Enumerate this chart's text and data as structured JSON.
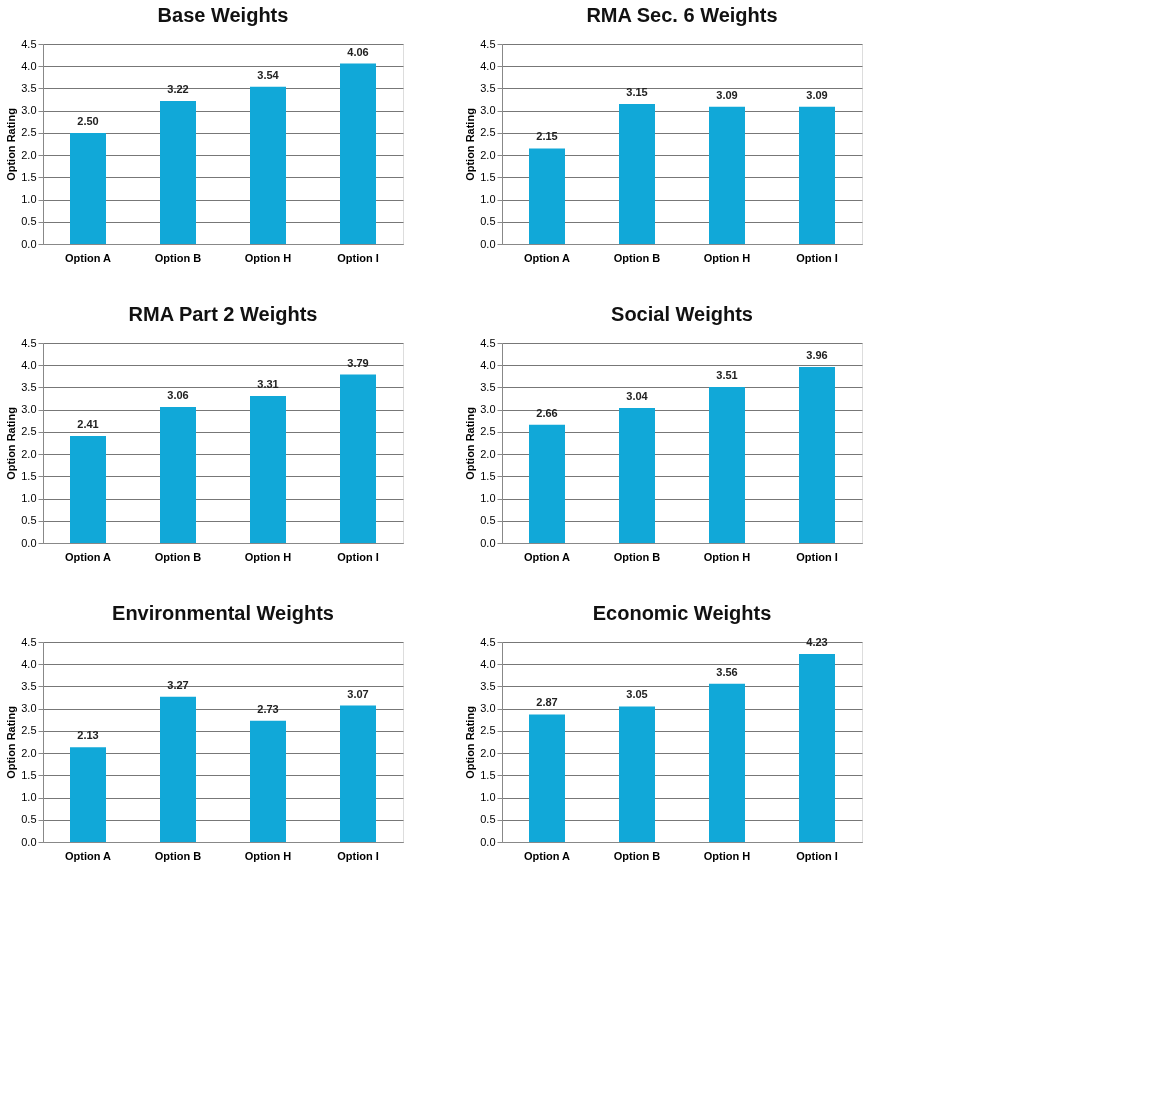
{
  "chart_data": [
    {
      "type": "bar",
      "title": "Base Weights",
      "ylabel": "Option Rating",
      "categories": [
        "Option A",
        "Option B",
        "Option H",
        "Option I"
      ],
      "values": [
        2.5,
        3.22,
        3.54,
        4.06
      ],
      "value_labels": [
        "2.50",
        "3.22",
        "3.54",
        "4.06"
      ],
      "color": "#11a8d8",
      "ylim": [
        0,
        4.5
      ],
      "yticks": [
        {
          "value": 0,
          "label": "0.0"
        },
        0.5,
        {
          "value": 1,
          "label": "1.0"
        },
        1.5,
        {
          "value": 2,
          "label": "2.0"
        },
        2.5,
        {
          "value": 3,
          "label": "3.0"
        },
        3.5,
        {
          "value": 4,
          "label": "4.0"
        },
        4.5
      ],
      "grid": "y"
    },
    {
      "type": "bar",
      "title": "RMA Sec. 6 Weights",
      "ylabel": "Option Rating",
      "categories": [
        "Option A",
        "Option B",
        "Option H",
        "Option I"
      ],
      "values": [
        2.15,
        3.15,
        3.09,
        3.09
      ],
      "value_labels": [
        "2.15",
        "3.15",
        "3.09",
        "3.09"
      ],
      "color": "#11a8d8",
      "ylim": [
        0,
        4.5
      ],
      "yticks": [
        {
          "value": 0,
          "label": "0.0"
        },
        0.5,
        {
          "value": 1,
          "label": "1.0"
        },
        1.5,
        {
          "value": 2,
          "label": "2.0"
        },
        2.5,
        {
          "value": 3,
          "label": "3.0"
        },
        3.5,
        {
          "value": 4,
          "label": "4.0"
        },
        4.5
      ],
      "grid": "y"
    },
    {
      "type": "bar",
      "title": "RMA Part 2 Weights",
      "ylabel": "Option Rating",
      "categories": [
        "Option A",
        "Option B",
        "Option H",
        "Option I"
      ],
      "values": [
        2.41,
        3.06,
        3.31,
        3.79
      ],
      "value_labels": [
        "2.41",
        "3.06",
        "3.31",
        "3.79"
      ],
      "color": "#11a8d8",
      "ylim": [
        0,
        4.5
      ],
      "yticks": [
        {
          "value": 0,
          "label": "0.0"
        },
        0.5,
        {
          "value": 1,
          "label": "1.0"
        },
        1.5,
        {
          "value": 2,
          "label": "2.0"
        },
        2.5,
        {
          "value": 3,
          "label": "3.0"
        },
        3.5,
        {
          "value": 4,
          "label": "4.0"
        },
        4.5
      ],
      "grid": "y"
    },
    {
      "type": "bar",
      "title": "Social Weights",
      "ylabel": "Option Rating",
      "categories": [
        "Option A",
        "Option B",
        "Option H",
        "Option I"
      ],
      "values": [
        2.66,
        3.04,
        3.51,
        3.96
      ],
      "value_labels": [
        "2.66",
        "3.04",
        "3.51",
        "3.96"
      ],
      "color": "#11a8d8",
      "ylim": [
        0,
        4.5
      ],
      "yticks": [
        {
          "value": 0,
          "label": "0.0"
        },
        0.5,
        {
          "value": 1,
          "label": "1.0"
        },
        1.5,
        {
          "value": 2,
          "label": "2.0"
        },
        2.5,
        {
          "value": 3,
          "label": "3.0"
        },
        3.5,
        {
          "value": 4,
          "label": "4.0"
        },
        4.5
      ],
      "grid": "y"
    },
    {
      "type": "bar",
      "title": "Environmental Weights",
      "ylabel": "Option Rating",
      "categories": [
        "Option A",
        "Option B",
        "Option H",
        "Option I"
      ],
      "values": [
        2.13,
        3.27,
        2.73,
        3.07
      ],
      "value_labels": [
        "2.13",
        "3.27",
        "2.73",
        "3.07"
      ],
      "color": "#11a8d8",
      "ylim": [
        0,
        4.5
      ],
      "yticks": [
        {
          "value": 0,
          "label": "0.0"
        },
        0.5,
        {
          "value": 1,
          "label": "1.0"
        },
        1.5,
        {
          "value": 2,
          "label": "2.0"
        },
        2.5,
        {
          "value": 3,
          "label": "3.0"
        },
        3.5,
        {
          "value": 4,
          "label": "4.0"
        },
        4.5
      ],
      "grid": "y"
    },
    {
      "type": "bar",
      "title": "Economic Weights",
      "ylabel": "Option Rating",
      "categories": [
        "Option A",
        "Option B",
        "Option H",
        "Option I"
      ],
      "values": [
        2.87,
        3.05,
        3.56,
        4.23
      ],
      "value_labels": [
        "2.87",
        "3.05",
        "3.56",
        "4.23"
      ],
      "color": "#11a8d8",
      "ylim": [
        0,
        4.5
      ],
      "yticks": [
        {
          "value": 0,
          "label": "0.0"
        },
        0.5,
        {
          "value": 1,
          "label": "1.0"
        },
        1.5,
        {
          "value": 2,
          "label": "2.0"
        },
        2.5,
        {
          "value": 3,
          "label": "3.0"
        },
        3.5,
        {
          "value": 4,
          "label": "4.0"
        },
        4.5
      ],
      "grid": "y"
    }
  ]
}
